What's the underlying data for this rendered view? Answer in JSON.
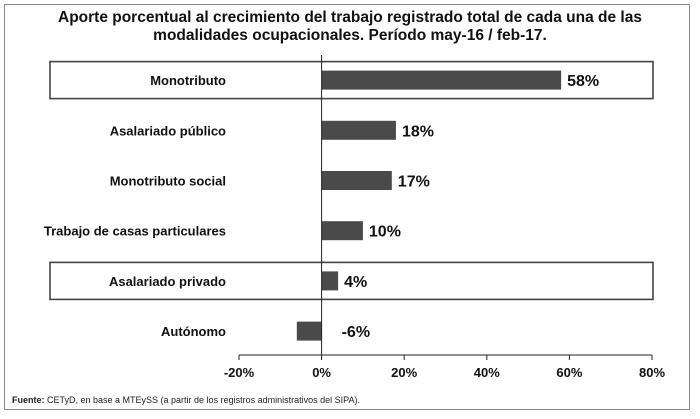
{
  "title_lines": [
    "Aporte porcentual al crecimiento del trabajo registrado total  de cada una de las",
    "modalidades ocupacionales.  Período may-16 / feb-17."
  ],
  "source": {
    "label": "Fuente:",
    "text": " CETyD, en base a MTEySS (a partir de los registros administrativos del SIPA)."
  },
  "colors": {
    "bar": "#4a4a4a",
    "highlight_border": "#444444",
    "axis": "#222222"
  },
  "chart_data": {
    "type": "bar",
    "orientation": "horizontal",
    "categories": [
      "Monotributo",
      "Asalariado público",
      "Monotributo social",
      "Trabajo de casas particulares",
      "Asalariado privado",
      "Autónomo"
    ],
    "values": [
      58,
      18,
      17,
      10,
      4,
      -6
    ],
    "data_labels": [
      "58%",
      "18%",
      "17%",
      "10%",
      "4%",
      "-6%"
    ],
    "highlighted": [
      "Monotributo",
      "Asalariado privado"
    ],
    "xlim": [
      -20,
      80
    ],
    "xticks": [
      -20,
      0,
      20,
      40,
      60,
      80
    ],
    "xtick_labels": [
      "-20%",
      "0%",
      "20%",
      "40%",
      "60%",
      "80%"
    ],
    "grid": false
  }
}
